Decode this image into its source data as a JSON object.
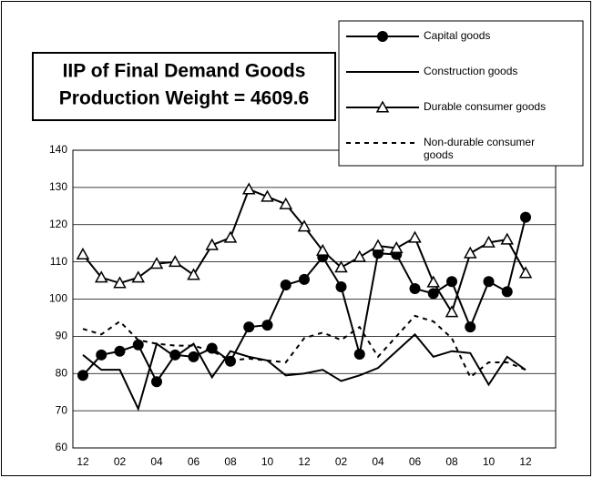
{
  "chart_data": {
    "type": "line",
    "title": "IIP of Final Demand Goods",
    "subtitle": "Production Weight = 4609.6",
    "categories": [
      "12",
      null,
      "02",
      null,
      "04",
      null,
      "06",
      null,
      "08",
      null,
      "10",
      null,
      "12",
      null,
      "02",
      null,
      "04",
      null,
      "06",
      null,
      "08",
      null,
      "10",
      null,
      "12"
    ],
    "series": [
      {
        "name": "Capital goods",
        "color": "#000000",
        "marker": "circle",
        "dash": "solid",
        "values": [
          79.5,
          85,
          86,
          87.7,
          77.8,
          85,
          84.5,
          86.8,
          83.3,
          92.5,
          93,
          103.8,
          105.3,
          111.3,
          103.3,
          85.2,
          112.3,
          112,
          102.8,
          101.5,
          104.7,
          92.5,
          104.7,
          102,
          122
        ]
      },
      {
        "name": "Construction goods",
        "color": "#000000",
        "marker": "none",
        "dash": "solid",
        "values": [
          85,
          81,
          81,
          70.5,
          88,
          84.5,
          88,
          79,
          86,
          84.5,
          83.5,
          79.5,
          80,
          81,
          78,
          79.5,
          81.5,
          86,
          90.5,
          84.5,
          86,
          85.5,
          77,
          84.5,
          81
        ]
      },
      {
        "name": "Durable consumer goods",
        "color": "#000000",
        "marker": "triangle",
        "dash": "solid",
        "values": [
          112,
          105.8,
          104.3,
          105.8,
          109.5,
          110,
          106.5,
          114.5,
          116.5,
          129.5,
          127.5,
          125.5,
          119.5,
          113,
          108.5,
          111.3,
          114.3,
          113.7,
          116.5,
          104.5,
          96.5,
          112.3,
          115.2,
          116,
          107
        ]
      },
      {
        "name": "Non-durable consumer goods",
        "color": "#000000",
        "marker": "none",
        "dash": "dashed",
        "values": [
          92,
          90.5,
          94,
          89,
          88,
          87.5,
          87.5,
          86,
          83.5,
          84,
          83.5,
          83,
          89.5,
          91,
          89,
          92.5,
          84.5,
          90,
          95.5,
          94,
          89.5,
          79,
          83,
          83,
          81
        ]
      }
    ],
    "ylim": [
      60,
      140
    ],
    "yticks": [
      60,
      70,
      80,
      90,
      100,
      110,
      120,
      130,
      140
    ],
    "grid": true,
    "legend": "top-right"
  }
}
